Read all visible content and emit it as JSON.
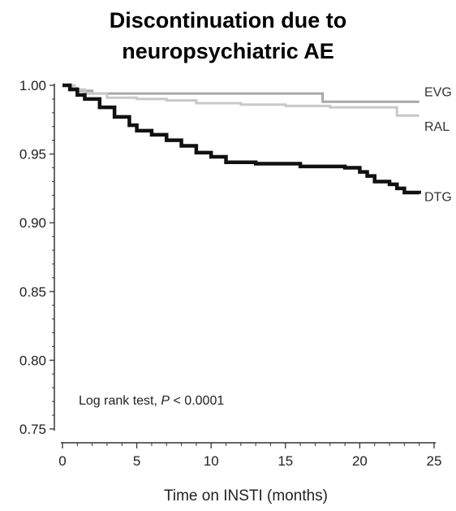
{
  "chart_data": {
    "type": "line",
    "title_lines": [
      "Discontinuation due to",
      "neuropsychiatric  AE"
    ],
    "xlabel": "Time on INSTI (months)",
    "ylabel": "",
    "xlim": [
      0,
      25
    ],
    "ylim": [
      0.75,
      1.0
    ],
    "x_ticks": [
      0,
      5,
      10,
      15,
      20,
      25
    ],
    "y_ticks": [
      0.75,
      0.8,
      0.85,
      0.9,
      0.95,
      1.0
    ],
    "y_tick_labels": [
      "0.75",
      "0.80",
      "0.85",
      "0.90",
      "0.95",
      "1.00"
    ],
    "grid": false,
    "annotation": {
      "prefix": "Log rank test, ",
      "p_symbol": "P",
      "suffix": " < 0.0001"
    },
    "series": [
      {
        "name": "EVG",
        "color": "#a8a8a8",
        "x": [
          0,
          0.6,
          1.0,
          2.0,
          17.5,
          17.5,
          24.0
        ],
        "y": [
          1.0,
          0.998,
          0.996,
          0.994,
          0.994,
          0.988,
          0.988
        ]
      },
      {
        "name": "RAL",
        "color": "#c8c8c8",
        "x": [
          0,
          0.8,
          1.5,
          3.0,
          5.0,
          7.0,
          9.0,
          12.0,
          15.0,
          18.0,
          22.0,
          22.5,
          24.0
        ],
        "y": [
          1.0,
          0.997,
          0.994,
          0.991,
          0.99,
          0.989,
          0.987,
          0.986,
          0.985,
          0.984,
          0.984,
          0.978,
          0.978
        ]
      },
      {
        "name": "DTG",
        "color": "#111111",
        "x": [
          0,
          0.5,
          1.0,
          1.5,
          2.5,
          3.5,
          4.5,
          5.0,
          6.0,
          7.0,
          8.0,
          9.0,
          10.0,
          11.0,
          13.0,
          15.0,
          16.0,
          19.0,
          20.0,
          20.5,
          21.0,
          21.5,
          22.0,
          22.5,
          23.0,
          24.0
        ],
        "y": [
          1.0,
          0.997,
          0.993,
          0.99,
          0.984,
          0.977,
          0.971,
          0.967,
          0.964,
          0.96,
          0.956,
          0.951,
          0.948,
          0.944,
          0.943,
          0.943,
          0.941,
          0.94,
          0.937,
          0.934,
          0.93,
          0.93,
          0.928,
          0.925,
          0.922,
          0.921
        ]
      }
    ]
  }
}
